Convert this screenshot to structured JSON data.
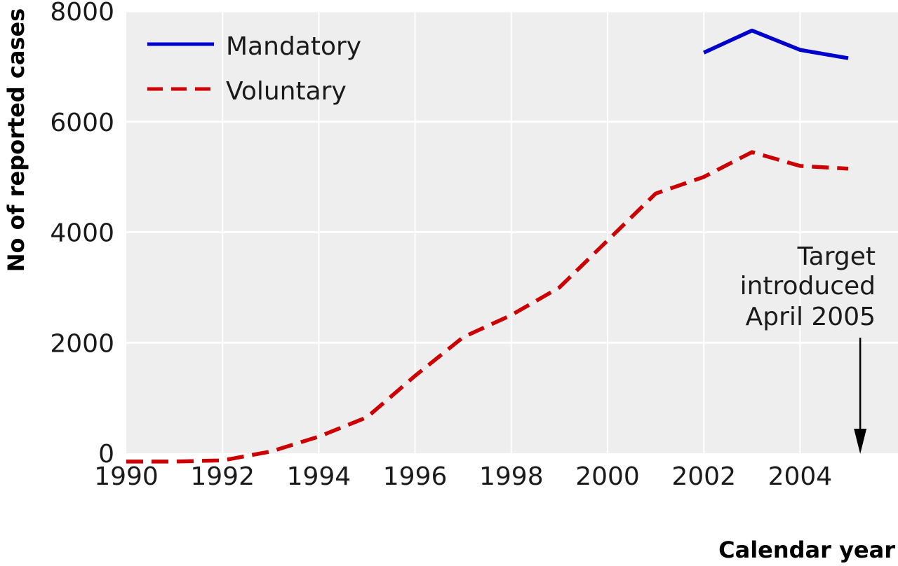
{
  "chart_data": {
    "type": "line",
    "title": "",
    "xlabel": "Calendar year",
    "ylabel": "No of reported cases",
    "xlim": [
      1990,
      2006
    ],
    "ylim": [
      0,
      8000
    ],
    "x_ticks": [
      "1990",
      "1992",
      "1994",
      "1996",
      "1998",
      "2000",
      "2002",
      "2004"
    ],
    "y_ticks": [
      "0",
      "2000",
      "4000",
      "6000",
      "8000"
    ],
    "grid": "horizontal",
    "legend_position": "top-left",
    "series": [
      {
        "name": "Mandatory",
        "style": "solid",
        "color": "#0000cc",
        "x": [
          2002,
          2003,
          2004,
          2005
        ],
        "y": [
          7250,
          7650,
          7300,
          7150
        ]
      },
      {
        "name": "Voluntary",
        "style": "dashed",
        "color": "#cc0000",
        "x": [
          1990,
          1991,
          1992,
          1993,
          1994,
          1995,
          1996,
          1997,
          1998,
          1999,
          2000,
          2001,
          2002,
          2003,
          2004,
          2005
        ],
        "y": [
          -150,
          -150,
          -130,
          30,
          300,
          650,
          1400,
          2100,
          2500,
          3000,
          3850,
          4700,
          5000,
          5450,
          5200,
          5150
        ]
      }
    ],
    "annotation": {
      "lines": [
        "Target",
        "introduced",
        "April 2005"
      ],
      "x": 2005.25
    }
  },
  "colors": {
    "plot_background": "#eeeeee",
    "gridline": "#ffffff",
    "text": "#1a1a1a"
  }
}
